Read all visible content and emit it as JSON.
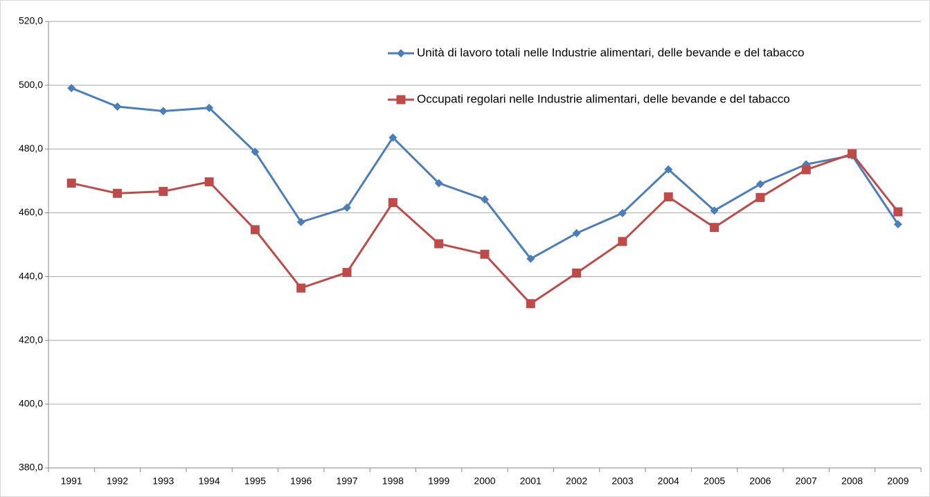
{
  "chart_data": {
    "type": "line",
    "categories": [
      "1991",
      "1992",
      "1993",
      "1994",
      "1995",
      "1996",
      "1997",
      "1998",
      "1999",
      "2000",
      "2001",
      "2002",
      "2003",
      "2004",
      "2005",
      "2006",
      "2007",
      "2008",
      "2009"
    ],
    "series": [
      {
        "name": "Unità di lavoro totali nelle Industrie alimentari, delle bevande e del tabacco",
        "color": "#4a7ebb",
        "marker": "diamond",
        "values": [
          499.1,
          493.3,
          491.9,
          492.9,
          479.1,
          457.1,
          461.6,
          483.6,
          469.3,
          464.2,
          445.6,
          453.6,
          459.9,
          473.6,
          460.7,
          469.0,
          475.2,
          478.0,
          456.4
        ]
      },
      {
        "name": "Occupati regolari nelle Industrie alimentari, delle bevande e del tabacco",
        "color": "#be4b48",
        "marker": "square",
        "values": [
          469.3,
          466.1,
          466.7,
          469.7,
          454.7,
          436.4,
          441.3,
          463.2,
          450.3,
          447.0,
          431.5,
          441.1,
          451.0,
          465.0,
          455.4,
          464.8,
          473.5,
          478.5,
          460.3
        ]
      }
    ],
    "ylim": [
      380,
      520
    ],
    "yticks": [
      {
        "value": 380,
        "label": "380,0"
      },
      {
        "value": 400,
        "label": "400,0"
      },
      {
        "value": 420,
        "label": "420,0"
      },
      {
        "value": 440,
        "label": "440,0"
      },
      {
        "value": 460,
        "label": "460,0"
      },
      {
        "value": 480,
        "label": "480,0"
      },
      {
        "value": 500,
        "label": "500,0"
      },
      {
        "value": 520,
        "label": "520,0"
      }
    ],
    "grid": true
  }
}
